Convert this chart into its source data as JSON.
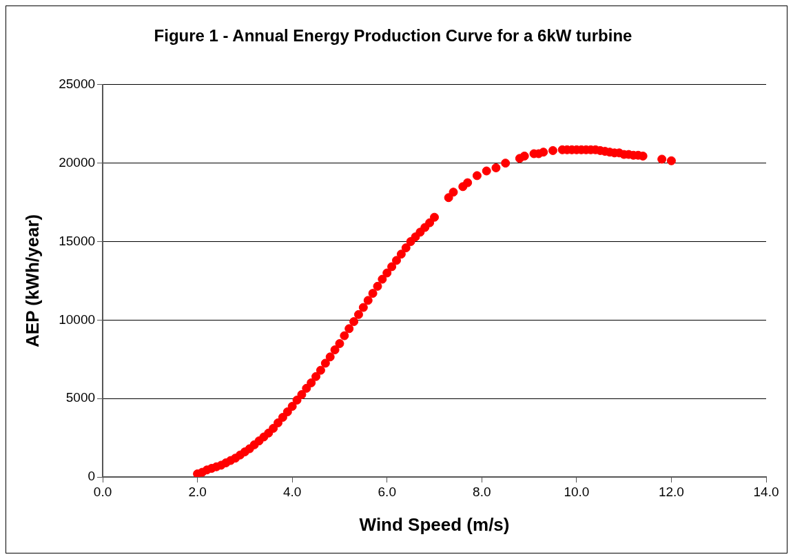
{
  "chart_data": {
    "type": "scatter",
    "title": "Figure 1 - Annual Energy Production Curve for a 6kW turbine",
    "xlabel": "Wind Speed (m/s)",
    "ylabel": "AEP (kWh/year)",
    "xlim": [
      0,
      14
    ],
    "xticks": [
      {
        "value": 0,
        "label": "0.0"
      },
      {
        "value": 2,
        "label": "2.0"
      },
      {
        "value": 4,
        "label": "4.0"
      },
      {
        "value": 6,
        "label": "6.0"
      },
      {
        "value": 8,
        "label": "8.0"
      },
      {
        "value": 10,
        "label": "10.0"
      },
      {
        "value": 12,
        "label": "12.0"
      },
      {
        "value": 14,
        "label": "14.0"
      }
    ],
    "ylim": [
      0,
      25000
    ],
    "yticks": [
      0,
      5000,
      10000,
      15000,
      20000,
      25000
    ],
    "grid": "y",
    "legend": false,
    "marker": "circle",
    "series": [
      {
        "color": "#ff0000",
        "x": [
          2.0,
          2.1,
          2.2,
          2.3,
          2.4,
          2.5,
          2.6,
          2.7,
          2.8,
          2.9,
          3.0,
          3.1,
          3.2,
          3.3,
          3.4,
          3.5,
          3.6,
          3.7,
          3.8,
          3.9,
          4.0,
          4.1,
          4.2,
          4.3,
          4.4,
          4.5,
          4.6,
          4.7,
          4.8,
          4.9,
          5.0,
          5.1,
          5.2,
          5.3,
          5.4,
          5.5,
          5.6,
          5.7,
          5.8,
          5.9,
          6.0,
          6.1,
          6.2,
          6.3,
          6.4,
          6.5,
          6.6,
          6.7,
          6.8,
          6.9,
          7.0,
          7.3,
          7.4,
          7.6,
          7.7,
          7.9,
          8.1,
          8.3,
          8.5,
          8.8,
          8.9,
          9.1,
          9.2,
          9.3,
          9.5,
          9.7,
          9.8,
          9.9,
          10.0,
          10.1,
          10.2,
          10.3,
          10.4,
          10.5,
          10.6,
          10.7,
          10.8,
          10.9,
          11.0,
          11.1,
          11.2,
          11.3,
          11.4,
          11.8,
          12.0
        ],
        "values": [
          200,
          300,
          450,
          550,
          650,
          750,
          900,
          1050,
          1200,
          1400,
          1600,
          1800,
          2050,
          2300,
          2550,
          2800,
          3100,
          3450,
          3800,
          4150,
          4500,
          4900,
          5250,
          5650,
          6000,
          6400,
          6800,
          7250,
          7650,
          8100,
          8500,
          9000,
          9450,
          9900,
          10350,
          10800,
          11250,
          11700,
          12150,
          12600,
          13000,
          13400,
          13800,
          14200,
          14600,
          15000,
          15300,
          15600,
          15900,
          16200,
          16550,
          17800,
          18150,
          18500,
          18750,
          19200,
          19500,
          19700,
          20000,
          20300,
          20450,
          20600,
          20600,
          20700,
          20800,
          20850,
          20850,
          20850,
          20850,
          20850,
          20850,
          20850,
          20850,
          20800,
          20750,
          20700,
          20650,
          20650,
          20550,
          20550,
          20500,
          20500,
          20450,
          20250,
          20150
        ]
      }
    ]
  }
}
